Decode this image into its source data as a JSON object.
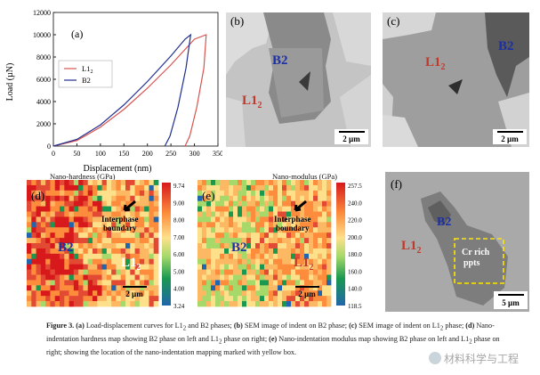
{
  "chart_data": {
    "type": "line",
    "panel": "(a)",
    "xlabel": "Displacement (nm)",
    "ylabel": "Load (µN)",
    "xlim": [
      0,
      350
    ],
    "ylim": [
      0,
      12000
    ],
    "xticks": [
      0,
      50,
      100,
      150,
      200,
      250,
      300,
      350
    ],
    "yticks": [
      0,
      2000,
      4000,
      6000,
      8000,
      10000,
      12000
    ],
    "legend": "middle-right",
    "series": [
      {
        "name": "L1",
        "subscript": "2",
        "color": "#d9534f",
        "x": [
          0,
          50,
          100,
          150,
          200,
          250,
          300,
          325,
          320,
          305,
          290,
          280
        ],
        "y": [
          0,
          500,
          1700,
          3300,
          5200,
          7300,
          9600,
          10000,
          7000,
          3500,
          900,
          0
        ]
      },
      {
        "name": "B2",
        "color": "#1f2f8f",
        "x": [
          0,
          50,
          100,
          150,
          200,
          250,
          280,
          292,
          282,
          265,
          248,
          237
        ],
        "y": [
          0,
          600,
          1900,
          3700,
          5800,
          8100,
          9600,
          10000,
          7000,
          3500,
          900,
          0
        ]
      }
    ]
  },
  "panels": {
    "b": {
      "label": "(b)",
      "phase_main": "B2",
      "phase_side": "L1",
      "phase_side_sub": "2",
      "scale": "2 µm"
    },
    "c": {
      "label": "(c)",
      "phase_main": "L1",
      "phase_main_sub": "2",
      "phase_side": "B2",
      "scale": "2 µm"
    },
    "d": {
      "label": "(d)",
      "title": "Nano-hardness (GPa)",
      "phase_left": "B2",
      "phase_right": "L1",
      "phase_right_sub": "2",
      "annotation_line1": "Interphase",
      "annotation_line2": "boundary",
      "scale": "2 µm",
      "colorbar_ticks": [
        "9.74",
        "9.00",
        "8.00",
        "7.00",
        "6.00",
        "5.00",
        "4.00",
        "3.24"
      ]
    },
    "e": {
      "label": "(e)",
      "title": "Nano-modulus (GPa)",
      "phase_left": "B2",
      "phase_right": "L1",
      "phase_right_sub": "2",
      "annotation_line1": "Interphase",
      "annotation_line2": "boundary",
      "scale": "2 µm",
      "colorbar_ticks": [
        "257.5",
        "240.0",
        "220.0",
        "200.0",
        "180.0",
        "160.0",
        "140.0",
        "118.5"
      ]
    },
    "f": {
      "label": "(f)",
      "phase_left": "L1",
      "phase_left_sub": "2",
      "phase_mid": "B2",
      "box_line1": "Cr rich",
      "box_line2": "ppts",
      "scale": "5 µm"
    }
  },
  "caption": {
    "figure_label": "Figure 3.",
    "a_label": "(a)",
    "a_text": "Load-displacement curves for L1",
    "a_sub": "2",
    "a_text2": " and B2 phases;",
    "b_label": "(b)",
    "b_text": "SEM image of indent on B2 phase;",
    "c_label": "(c)",
    "c_text": "SEM image of indent on L1",
    "c_sub": "2",
    "c_text2": " phase;",
    "d_label": "(d)",
    "d_text": "Nano-indentation hardness map showing B2 phase on left and L1",
    "d_sub": "2",
    "d_text2": " phase on right;",
    "e_label": "(e)",
    "e_text": "Nano-indentation modulus map showing B2 phase on left and L1",
    "e_sub": "2",
    "e_text2": " phase on right;",
    "tail": "showing the location of the nano-indentation mapping marked with yellow box."
  },
  "watermark": "材料科学与工程"
}
